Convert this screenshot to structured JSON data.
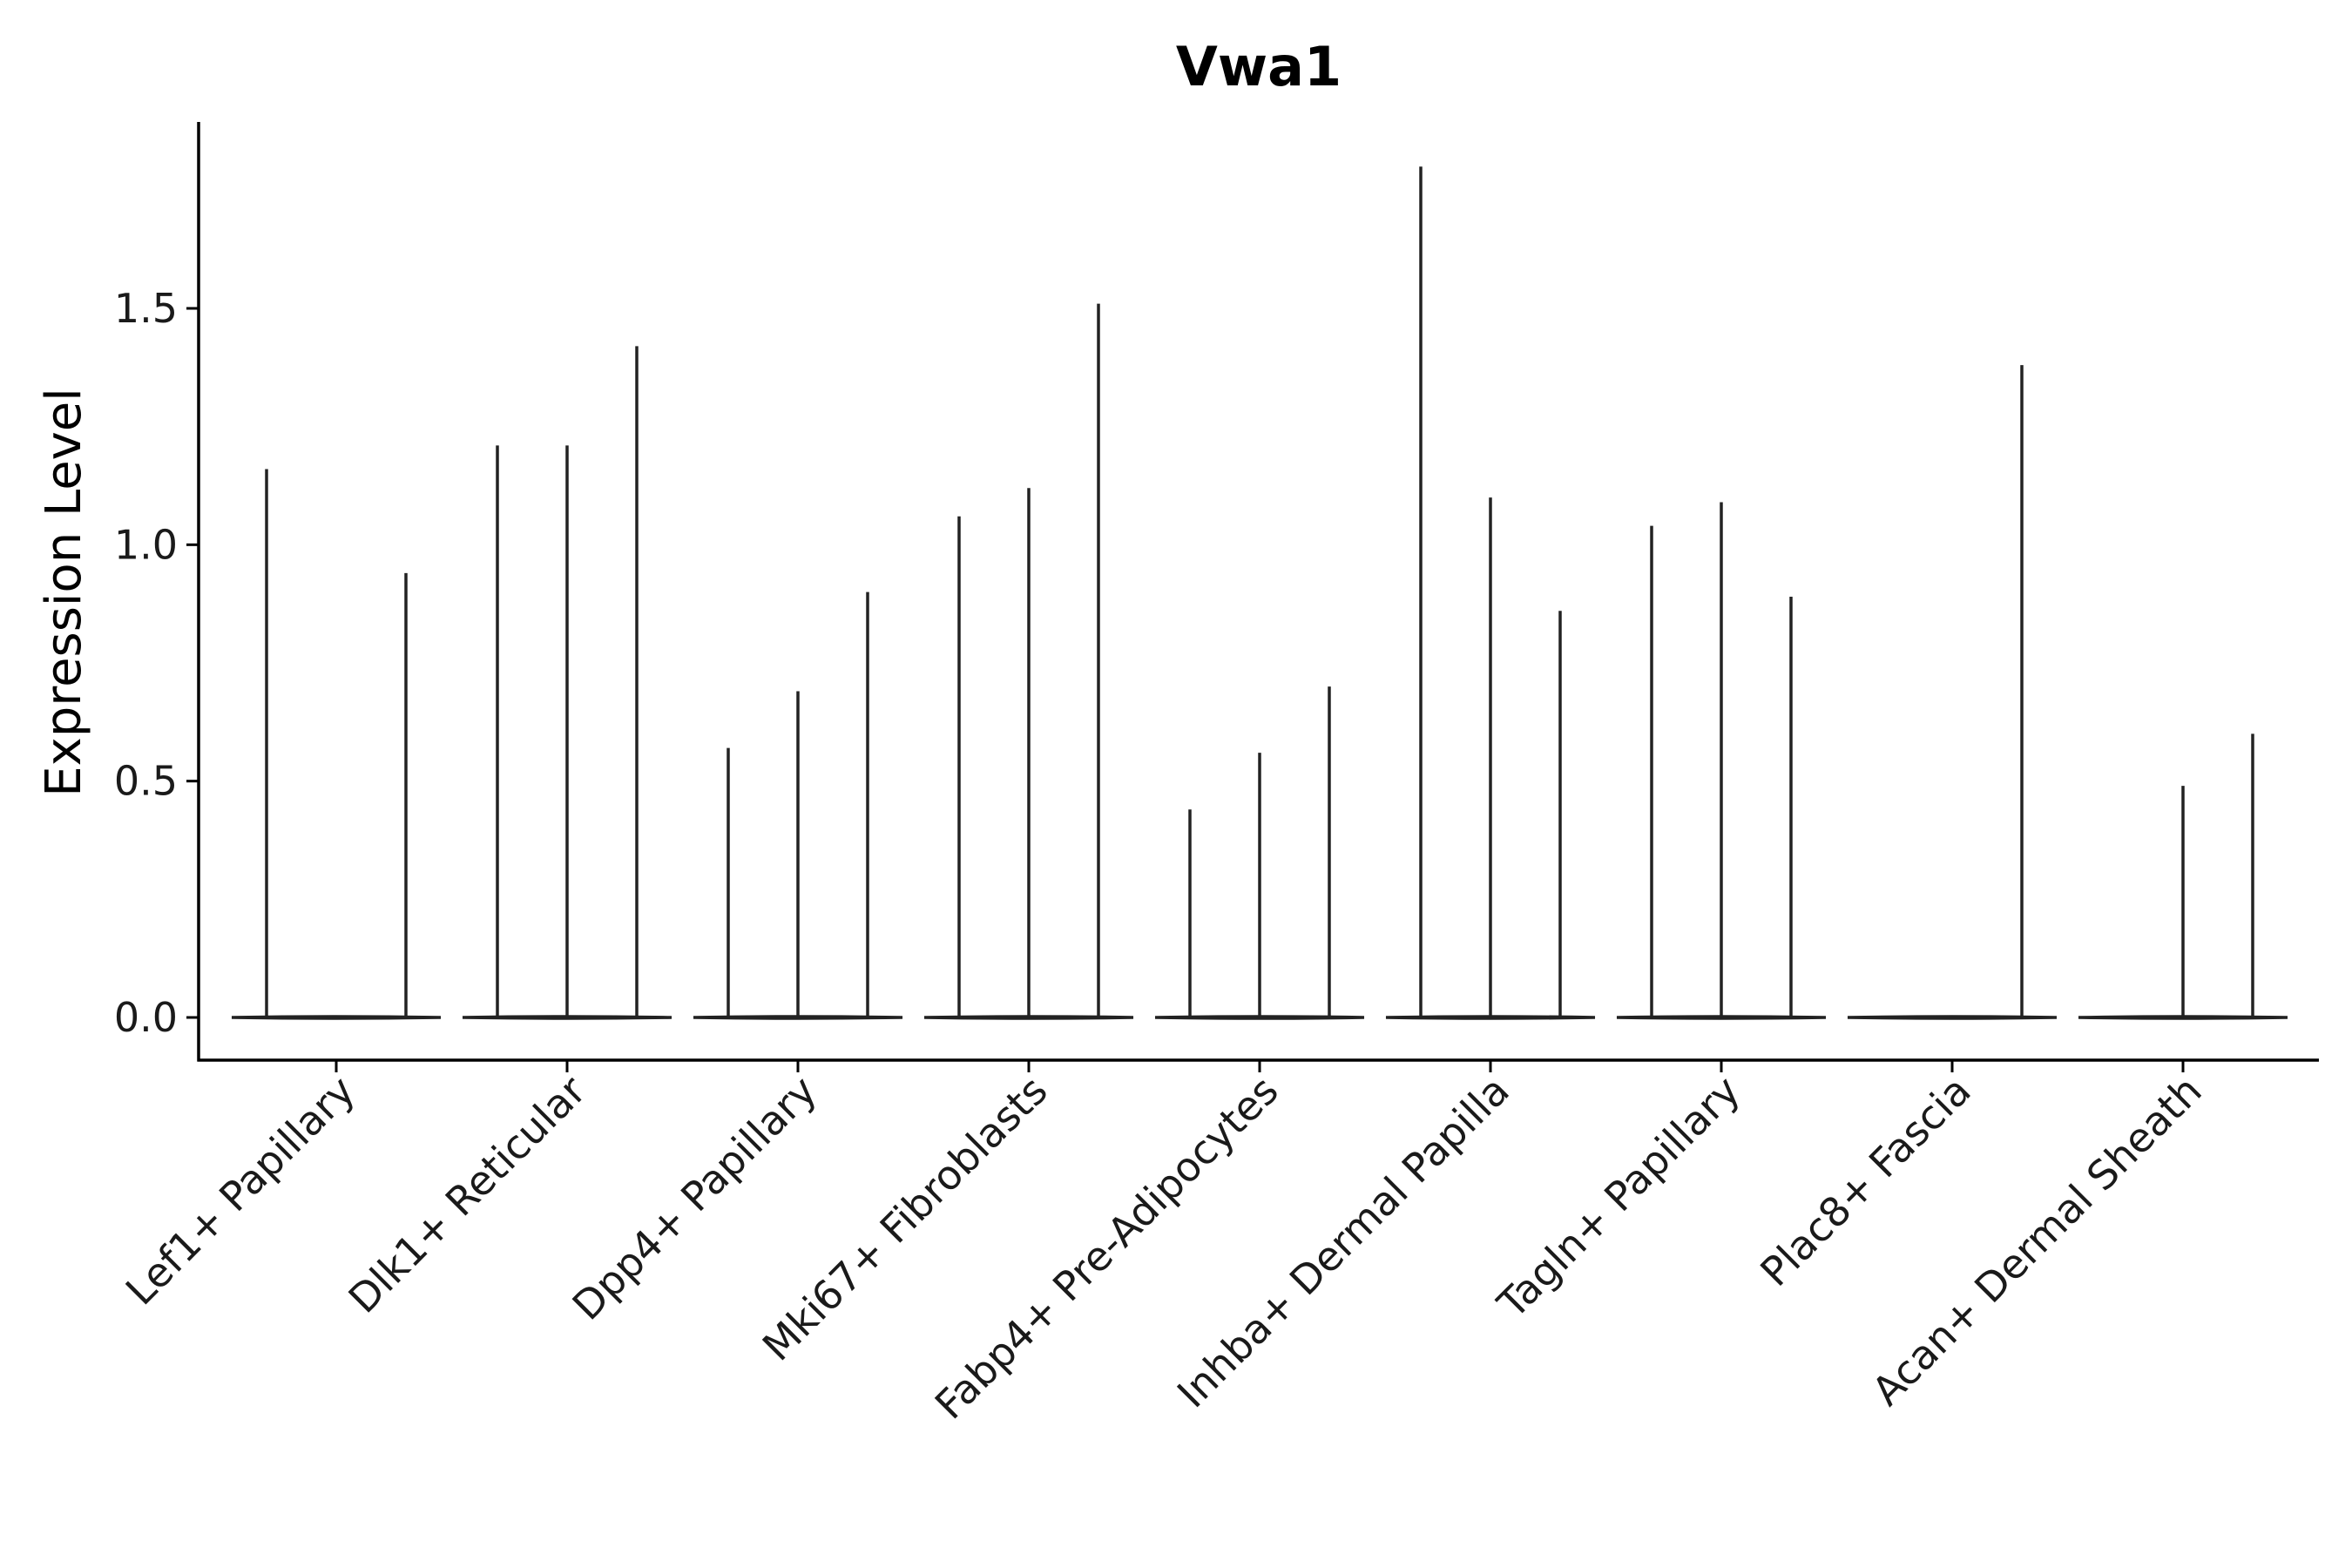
{
  "chart_data": {
    "type": "violin",
    "title": "Vwa1",
    "xlabel": "",
    "ylabel": "Expression Level",
    "ylim": [
      -0.09,
      1.89
    ],
    "yticks": [
      0.0,
      0.5,
      1.0,
      1.5
    ],
    "ytick_labels": [
      "0.0",
      "0.5",
      "1.0",
      "1.5"
    ],
    "categories": [
      "Lef1+ Papillary",
      "Dlk1+ Reticular",
      "Dpp4+ Papillary",
      "Mki67+ Fibroblasts",
      "Fabp4+ Pre-Adipocytes",
      "Inhba+ Dermal Papilla",
      "Tagln+ Papillary",
      "Plac8+ Fascia",
      "Acan+ Dermal Sheath"
    ],
    "groups": [
      {
        "name": "Lef1+ Papillary",
        "max_values": [
          1.16,
          0.0,
          0.94
        ]
      },
      {
        "name": "Dlk1+ Reticular",
        "max_values": [
          1.21,
          1.21,
          1.42
        ]
      },
      {
        "name": "Dpp4+ Papillary",
        "max_values": [
          0.57,
          0.69,
          0.9
        ]
      },
      {
        "name": "Mki67+ Fibroblasts",
        "max_values": [
          1.06,
          1.12,
          1.51
        ]
      },
      {
        "name": "Fabp4+ Pre-Adipocytes",
        "max_values": [
          0.44,
          0.56,
          0.7
        ]
      },
      {
        "name": "Inhba+ Dermal Papilla",
        "max_values": [
          1.8,
          1.1,
          0.86
        ]
      },
      {
        "name": "Tagln+ Papillary",
        "max_values": [
          1.04,
          1.09,
          0.89
        ]
      },
      {
        "name": "Plac8+ Fascia",
        "max_values": [
          0.0,
          0.0,
          1.38
        ]
      },
      {
        "name": "Acan+ Dermal Sheath",
        "max_values": [
          0.0,
          0.49,
          0.6
        ]
      }
    ],
    "median": 0.0,
    "legend": "none",
    "grid": false
  }
}
